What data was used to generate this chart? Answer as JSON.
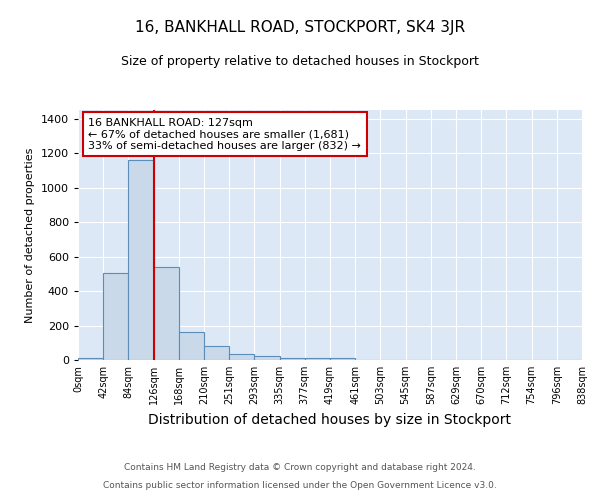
{
  "title": "16, BANKHALL ROAD, STOCKPORT, SK4 3JR",
  "subtitle": "Size of property relative to detached houses in Stockport",
  "xlabel": "Distribution of detached houses by size in Stockport",
  "ylabel": "Number of detached properties",
  "footnote1": "Contains HM Land Registry data © Crown copyright and database right 2024.",
  "footnote2": "Contains public sector information licensed under the Open Government Licence v3.0.",
  "bin_labels": [
    "0sqm",
    "42sqm",
    "84sqm",
    "126sqm",
    "168sqm",
    "210sqm",
    "251sqm",
    "293sqm",
    "335sqm",
    "377sqm",
    "419sqm",
    "461sqm",
    "503sqm",
    "545sqm",
    "587sqm",
    "629sqm",
    "670sqm",
    "712sqm",
    "754sqm",
    "796sqm",
    "838sqm"
  ],
  "bar_heights": [
    10,
    505,
    1160,
    540,
    162,
    82,
    35,
    25,
    13,
    13,
    10,
    0,
    0,
    0,
    0,
    0,
    0,
    0,
    0,
    0
  ],
  "bar_color": "#c9d9ea",
  "bar_edge_color": "#5b8db8",
  "property_line_x": 3.0,
  "vline_color": "#cc0000",
  "annotation_text": "16 BANKHALL ROAD: 127sqm\n← 67% of detached houses are smaller (1,681)\n33% of semi-detached houses are larger (832) →",
  "annotation_box_color": "white",
  "annotation_box_edge_color": "#cc0000",
  "ylim": [
    0,
    1450
  ],
  "yticks": [
    0,
    200,
    400,
    600,
    800,
    1000,
    1200,
    1400
  ],
  "bg_color": "#dce8f5",
  "fig_bg_color": "#ffffff",
  "title_fontsize": 11,
  "subtitle_fontsize": 9,
  "xlabel_fontsize": 10,
  "ylabel_fontsize": 8,
  "footnote_fontsize": 6.5
}
